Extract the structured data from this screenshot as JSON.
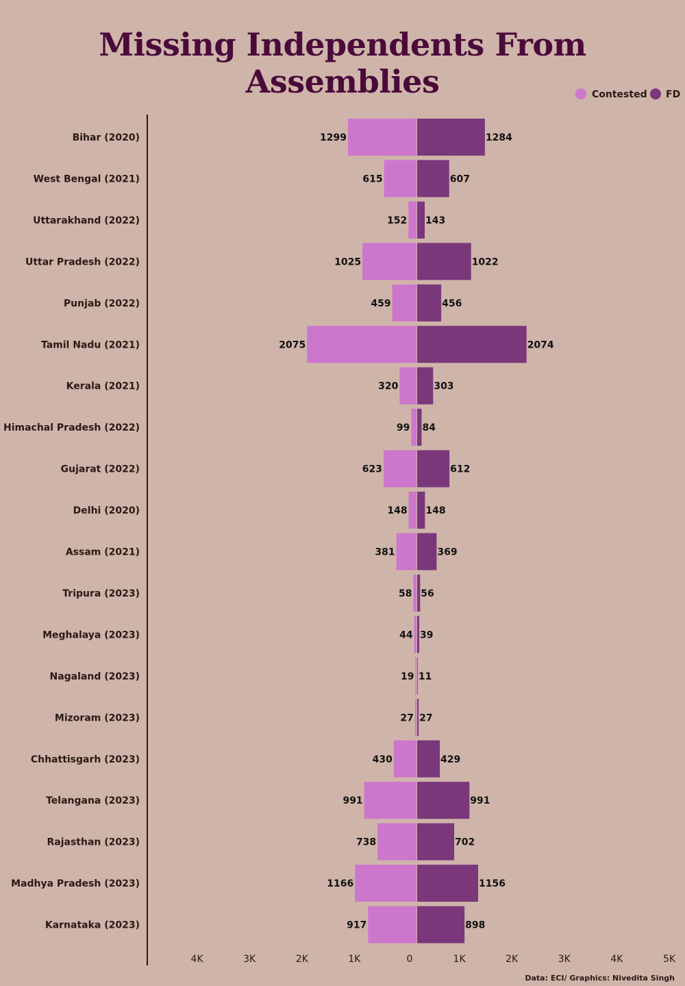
{
  "chart_data": {
    "type": "bar",
    "orientation": "horizontal-diverging",
    "title": "Missing Independents From Assemblies",
    "source": "Data: ECI/ Graphics: Nivedita Singh",
    "categories": [
      "Bihar (2020)",
      "West Bengal (2021)",
      "Uttarakhand (2022)",
      "Uttar Pradesh (2022)",
      "Punjab (2022)",
      "Tamil Nadu (2021)",
      "Kerala (2021)",
      "Himachal Pradesh (2022)",
      "Gujarat (2022)",
      "Delhi (2020)",
      "Assam (2021)",
      "Tripura (2023)",
      "Meghalaya (2023)",
      "Nagaland (2023)",
      "Mizoram (2023)",
      "Chhattisgarh (2023)",
      "Telangana (2023)",
      "Rajasthan (2023)",
      "Madhya Pradesh (2023)",
      "Karnataka (2023)"
    ],
    "series": [
      {
        "name": "Contested",
        "color": "#cc77cc",
        "side": "left",
        "values": [
          1299,
          615,
          152,
          1025,
          459,
          2075,
          320,
          99,
          623,
          148,
          381,
          58,
          44,
          19,
          27,
          430,
          991,
          738,
          1166,
          917
        ]
      },
      {
        "name": "FD",
        "color": "#7a377a",
        "side": "right",
        "values": [
          1284,
          607,
          143,
          1022,
          456,
          2074,
          303,
          84,
          612,
          148,
          369,
          56,
          39,
          11,
          27,
          429,
          991,
          702,
          1156,
          898
        ]
      }
    ],
    "xlim": [
      -4000,
      5000
    ],
    "tick_labels": [
      "4K",
      "3K",
      "2K",
      "1K",
      "0",
      "1K",
      "2K",
      "3K",
      "4K",
      "5K"
    ],
    "legend_position": "top-right",
    "grid": false
  },
  "colors": {
    "background": "#cfb4aa",
    "title": "#4a0a3a"
  }
}
